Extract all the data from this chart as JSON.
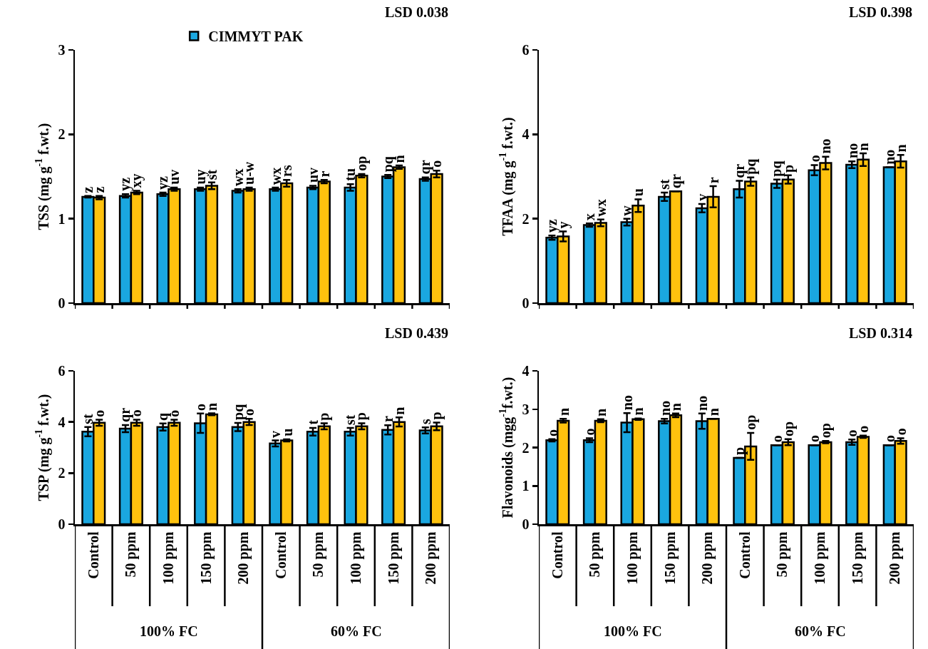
{
  "chart_data": [
    {
      "type": "bar",
      "ylabel": "TSS (mg g$^{-1}$ f.wt.)",
      "categories": [
        null,
        null,
        null,
        null,
        null,
        null,
        null,
        null,
        null,
        null
      ],
      "tick_labels": "y",
      "ylim": [
        0,
        3
      ],
      "yticks": [
        0,
        1,
        2,
        3
      ],
      "legend": "top",
      "annotations": [
        "LSD 0.038"
      ],
      "series": [
        {
          "name": "CIMMYT PAK",
          "color": "#1aa7e0",
          "values": [
            1.26,
            1.27,
            1.29,
            1.35,
            1.33,
            1.35,
            1.37,
            1.37,
            1.5,
            1.47
          ],
          "errors": [
            0.01,
            0.02,
            0.02,
            0.02,
            0.02,
            0.02,
            0.02,
            0.04,
            0.02,
            0.02
          ],
          "value_labels": [
            "z",
            "yz",
            "yz",
            "uy",
            "wx",
            "wx",
            "uv",
            "tu",
            "pq",
            "qr"
          ]
        },
        {
          "color": "#ffc20e",
          "values": [
            1.25,
            1.31,
            1.35,
            1.39,
            1.35,
            1.42,
            1.44,
            1.51,
            1.61,
            1.53
          ],
          "errors": [
            0.02,
            0.02,
            0.02,
            0.04,
            0.02,
            0.04,
            0.02,
            0.02,
            0.02,
            0.04
          ],
          "value_labels": [
            "z",
            "xy",
            "uv",
            "st",
            "u-w",
            "rs",
            "r",
            "op",
            "n",
            "o"
          ]
        }
      ]
    },
    {
      "type": "bar",
      "ylabel": "TFAA (mg g$^{-1}$ f.wt.)",
      "categories": [
        null,
        null,
        null,
        null,
        null,
        null,
        null,
        null,
        null,
        null
      ],
      "tick_labels": "y",
      "ylim": [
        0,
        6
      ],
      "yticks": [
        0,
        2,
        4,
        6
      ],
      "annotations": [
        "LSD 0.398"
      ],
      "series": [
        {
          "color": "#1aa7e0",
          "values": [
            1.55,
            1.85,
            1.92,
            2.52,
            2.25,
            2.7,
            2.83,
            3.15,
            3.28,
            3.22
          ],
          "errors": [
            0.05,
            0.04,
            0.08,
            0.1,
            0.1,
            0.2,
            0.1,
            0.12,
            0.08,
            null
          ],
          "value_labels": [
            "yz",
            "x",
            "w",
            "st",
            "v",
            "qr",
            "pq",
            "o",
            "no",
            "no"
          ]
        },
        {
          "color": "#ffc20e",
          "values": [
            1.58,
            1.9,
            2.31,
            2.65,
            2.52,
            2.88,
            2.93,
            3.32,
            3.4,
            3.36
          ],
          "errors": [
            0.12,
            0.08,
            0.15,
            null,
            0.25,
            0.1,
            0.1,
            0.15,
            0.15,
            0.15
          ],
          "value_labels": [
            "y",
            "wx",
            "u",
            "qr",
            "r",
            "pq",
            "p",
            "no",
            "n",
            "n"
          ]
        }
      ]
    },
    {
      "type": "bar",
      "ylabel": "TSP (mg g$^{-1}$ f.wt.)",
      "categories": [
        "Control",
        "50 ppm",
        "100 ppm",
        "150 ppm",
        "200 ppm",
        "Control",
        "50 ppm",
        "100 ppm",
        "150 ppm",
        "200 ppm"
      ],
      "ylim": [
        0,
        6
      ],
      "yticks": [
        0,
        2,
        4,
        6
      ],
      "annotations": [
        "LSD 0.439",
        "100% FC",
        "60% FC"
      ],
      "series": [
        {
          "color": "#1aa7e0",
          "values": [
            3.62,
            3.74,
            3.8,
            3.95,
            3.8,
            3.16,
            3.62,
            3.62,
            3.69,
            3.67
          ],
          "errors": [
            0.18,
            0.14,
            0.14,
            0.38,
            0.16,
            0.12,
            0.15,
            0.15,
            0.18,
            0.12
          ],
          "value_labels": [
            "st",
            "qr",
            "q",
            "o",
            "pq",
            "v",
            "t",
            "st",
            "r",
            "s"
          ]
        },
        {
          "color": "#ffc20e",
          "values": [
            3.97,
            3.97,
            3.97,
            4.3,
            4.0,
            3.28,
            3.83,
            3.83,
            4.0,
            3.83
          ],
          "errors": [
            0.12,
            0.12,
            0.12,
            0.04,
            0.12,
            0.04,
            0.12,
            0.12,
            0.18,
            0.15
          ],
          "value_labels": [
            "o",
            "o",
            "o",
            "n",
            "o",
            "u",
            "p",
            "p",
            "n",
            "p"
          ]
        }
      ]
    },
    {
      "type": "bar",
      "ylabel": "Flavonoids (mgg$^{-1}$f.wt.)",
      "categories": [
        "Control",
        "50 ppm",
        "100 ppm",
        "150 ppm",
        "200 ppm",
        "Control",
        "50 ppm",
        "100 ppm",
        "150 ppm",
        "200 ppm"
      ],
      "ylim": [
        0,
        4
      ],
      "yticks": [
        0,
        1,
        2,
        3,
        4
      ],
      "annotations": [
        "LSD 0.314",
        "100% FC",
        "60% FC"
      ],
      "series": [
        {
          "color": "#1aa7e0",
          "values": [
            2.19,
            2.19,
            2.65,
            2.69,
            2.69,
            1.73,
            2.06,
            2.06,
            2.14,
            2.06
          ],
          "errors": [
            0.03,
            0.05,
            0.25,
            0.06,
            0.2,
            null,
            null,
            null,
            0.07,
            null
          ],
          "value_labels": [
            "o",
            "o",
            "no",
            "no",
            "no",
            "p",
            "o",
            "o",
            "o",
            "o"
          ]
        },
        {
          "color": "#ffc20e",
          "values": [
            2.7,
            2.7,
            2.74,
            2.84,
            2.75,
            2.03,
            2.14,
            2.14,
            2.28,
            2.17
          ],
          "errors": [
            0.05,
            0.04,
            0.02,
            0.05,
            null,
            0.35,
            0.08,
            0.03,
            0.03,
            0.07
          ],
          "value_labels": [
            "n",
            "n",
            "n",
            "n",
            "n",
            "op",
            "op",
            "op",
            "o",
            "o"
          ]
        }
      ]
    }
  ]
}
